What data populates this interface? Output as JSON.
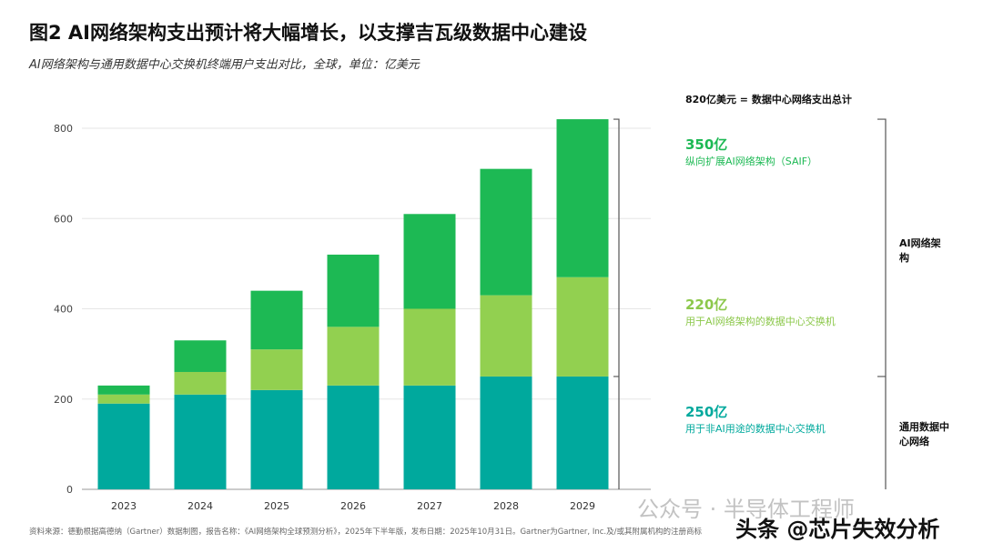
{
  "title": "图2 AI网络架构支出预计将大幅增长，以支撑吉瓦级数据中心建设",
  "subtitle": "AI网络架构与通用数据中心交换机终端用户支出对比，全球，单位：亿美元",
  "colors": {
    "general": "#00A99D",
    "ai_switch": "#92D050",
    "saif": "#1DB954"
  },
  "chart_data": {
    "type": "bar",
    "stacked": true,
    "categories": [
      "2023",
      "2024",
      "2025",
      "2026",
      "2027",
      "2028",
      "2029"
    ],
    "series": [
      {
        "name": "用于非AI用途的数据中心交换机",
        "values": [
          190,
          210,
          220,
          230,
          230,
          250,
          250
        ]
      },
      {
        "name": "用于AI网络架构的数据中心交换机",
        "values": [
          20,
          50,
          90,
          130,
          170,
          180,
          220
        ]
      },
      {
        "name": "纵向扩展AI网络架构（SAIF）",
        "values": [
          20,
          70,
          130,
          160,
          210,
          280,
          350
        ]
      }
    ],
    "yticks": [
      "0",
      "200",
      "400",
      "600",
      "800"
    ],
    "ylim": [
      0,
      820
    ],
    "grid": true
  },
  "annotations": {
    "total": "820亿美元 = 数据中心网络支出总计",
    "saif_value": "350亿",
    "saif_label": "纵向扩展AI网络架构（SAIF）",
    "ai_switch_value": "220亿",
    "ai_switch_label": "用于AI网络架构的数据中心交换机",
    "general_value": "250亿",
    "general_label": "用于非AI用途的数据中心交换机",
    "group_ai": "AI网络架构",
    "group_general": "通用数据中心网络"
  },
  "footnote": "资料来源：德勤根据高德纳（Gartner）数据制图，报告名称：《AI网络架构全球预测分析》，2025年下半年版，发布日期：2025年10月31日。Gartner为Gartner, Inc.及/或其附属机构的注册商标",
  "watermarks": [
    "公众号 · 半导体工程师",
    "头条 @芯片失效分析"
  ]
}
